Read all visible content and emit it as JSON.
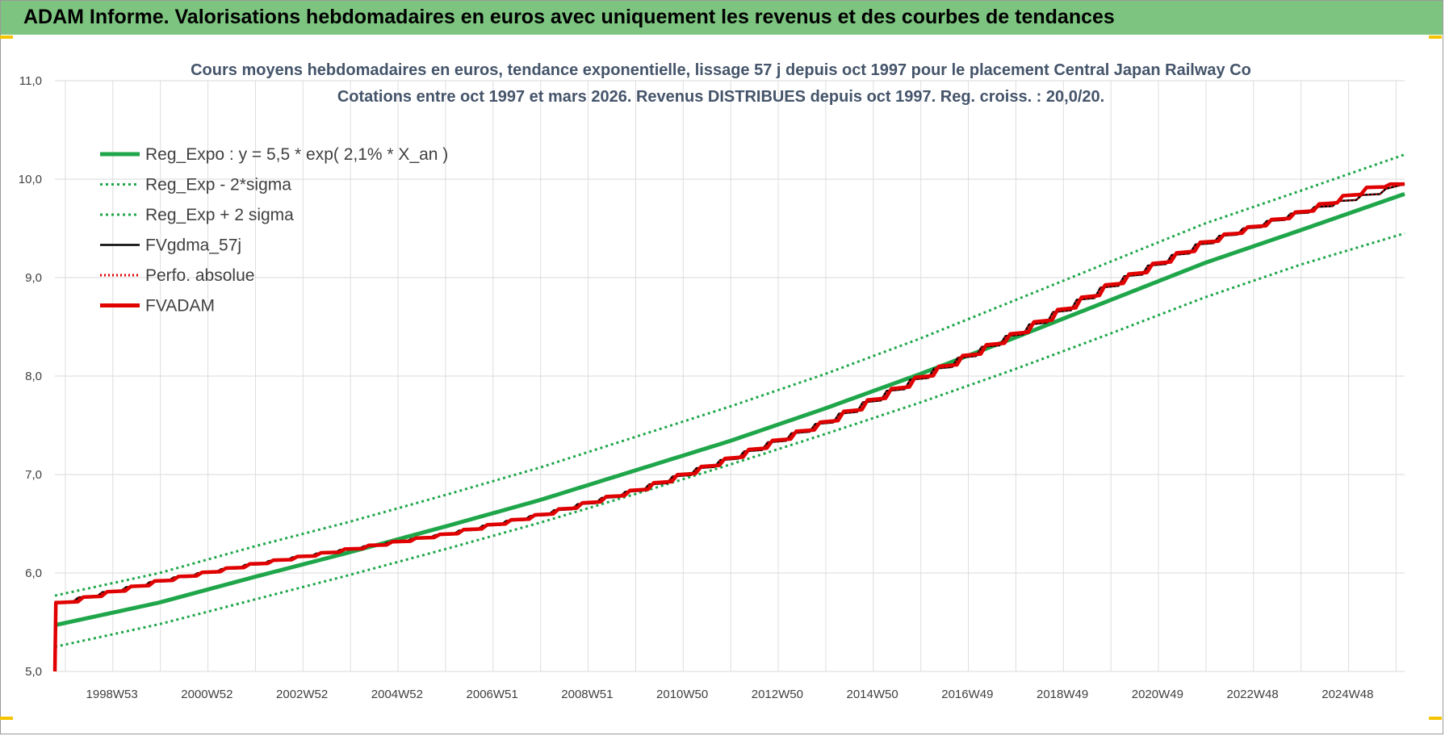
{
  "banner": {
    "title": "ADAM Informe. Valorisations hebdomadaires en euros avec uniquement les revenus et des courbes de tendances"
  },
  "colors": {
    "banner": "#7cc47f",
    "trend": "#1fa64a",
    "fvgdma": "#000000",
    "perfo": "#e00000",
    "fvadam": "#e00000"
  },
  "chart_data": {
    "type": "line",
    "title": "Cours moyens hebdomadaires en euros, tendance exponentielle, lissage 57 j depuis oct 1997 pour le placement Central Japan Railway Co",
    "subtitle": "Cotations entre oct 1997 et mars 2026. Revenus DISTRIBUES depuis oct 1997. Reg. croiss. : 20,0/20.",
    "x_start": 1997.8,
    "x_end": 2026.2,
    "ylim": [
      5.0,
      11.0
    ],
    "y_ticks": [
      "5,0",
      "6,0",
      "7,0",
      "8,0",
      "9,0",
      "10,0",
      "11,0"
    ],
    "x_tick_labels": [
      "1998W53",
      "2000W52",
      "2002W52",
      "2004W52",
      "2006W51",
      "2008W51",
      "2010W50",
      "2012W50",
      "2014W50",
      "2016W49",
      "2018W49",
      "2020W49",
      "2022W48",
      "2024W48"
    ],
    "grid": true,
    "legend_position": "top-left",
    "legend": [
      "Reg_Expo : y = 5,5 * exp( 2,1% *  X_an )",
      "Reg_Exp - 2*sigma",
      "Reg_Exp + 2 sigma",
      "FVgdma_57j",
      "Perfo. absolue",
      "FVADAM"
    ],
    "series": [
      {
        "name": "Reg_Expo : y = 5,5 * exp( 2,1% *  X_an )",
        "x": [
          1997.8,
          2000,
          2002,
          2004,
          2006,
          2008,
          2010,
          2012,
          2014,
          2016,
          2018,
          2020,
          2022,
          2024,
          2026.2
        ],
        "values": [
          5.47,
          5.7,
          5.96,
          6.21,
          6.47,
          6.74,
          7.04,
          7.34,
          7.67,
          8.02,
          8.39,
          8.77,
          9.15,
          9.48,
          9.85
        ]
      },
      {
        "name": "Reg_Exp - 2*sigma",
        "x": [
          1997.8,
          2000,
          2002,
          2004,
          2006,
          2008,
          2010,
          2012,
          2014,
          2016,
          2018,
          2020,
          2022,
          2024,
          2026.2
        ],
        "values": [
          5.25,
          5.48,
          5.73,
          5.98,
          6.24,
          6.51,
          6.8,
          7.1,
          7.41,
          7.73,
          8.07,
          8.43,
          8.8,
          9.13,
          9.45
        ]
      },
      {
        "name": "Reg_Exp + 2 sigma",
        "x": [
          1997.8,
          2000,
          2002,
          2004,
          2006,
          2008,
          2010,
          2012,
          2014,
          2016,
          2018,
          2020,
          2022,
          2024,
          2026.2
        ],
        "values": [
          5.77,
          6.0,
          6.27,
          6.52,
          6.79,
          7.07,
          7.38,
          7.69,
          8.02,
          8.38,
          8.77,
          9.16,
          9.55,
          9.88,
          10.25
        ]
      },
      {
        "name": "FVgdma_57j",
        "x": [
          1997.8,
          2000,
          2002,
          2004,
          2006,
          2008,
          2010,
          2012,
          2014,
          2016,
          2018,
          2020,
          2022,
          2024,
          2026.2
        ],
        "values": [
          5.7,
          5.93,
          6.1,
          6.25,
          6.4,
          6.6,
          6.85,
          7.18,
          7.55,
          8.01,
          8.45,
          8.95,
          9.38,
          9.68,
          9.95
        ]
      },
      {
        "name": "Perfo. absolue",
        "x": [
          1997.8,
          2000,
          2002,
          2004,
          2006,
          2008,
          2010,
          2012,
          2014,
          2016,
          2018,
          2020,
          2022,
          2024,
          2026.2
        ],
        "values": [
          5.7,
          5.93,
          6.1,
          6.25,
          6.4,
          6.6,
          6.85,
          7.18,
          7.55,
          8.01,
          8.45,
          8.95,
          9.38,
          9.68,
          9.95
        ]
      },
      {
        "name": "FVADAM",
        "x": [
          1997.8,
          1997.82,
          1997.9,
          2000,
          2002,
          2004,
          2006,
          2008,
          2010,
          2012,
          2014,
          2016,
          2018,
          2020,
          2022,
          2024,
          2025.6,
          2026.2
        ],
        "values": [
          5.0,
          5.7,
          5.7,
          5.93,
          6.1,
          6.25,
          6.4,
          6.6,
          6.85,
          7.18,
          7.55,
          8.01,
          8.45,
          8.95,
          9.38,
          9.68,
          9.95,
          9.95
        ]
      }
    ]
  }
}
